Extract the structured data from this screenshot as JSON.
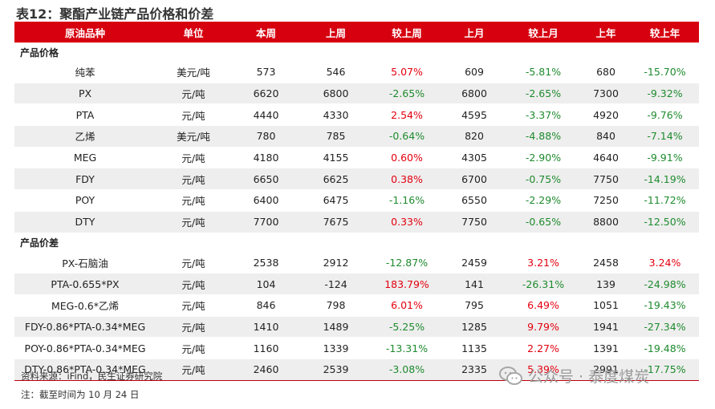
{
  "title": "表12：聚酯产业链产品价格和价差",
  "headers": [
    "原油品种",
    "单位",
    "本周",
    "上周",
    "较上周",
    "上月",
    "较上月",
    "上年",
    "较上年"
  ],
  "sections": [
    {
      "name": "产品价格",
      "rows": [
        [
          "纯苯",
          "美元/吨",
          "573",
          "546",
          "5.07%",
          "609",
          "-5.81%",
          "680",
          "-15.70%"
        ],
        [
          "PX",
          "元/吨",
          "6620",
          "6800",
          "-2.65%",
          "6800",
          "-2.65%",
          "7300",
          "-9.32%"
        ],
        [
          "PTA",
          "元/吨",
          "4440",
          "4330",
          "2.54%",
          "4595",
          "-3.37%",
          "4920",
          "-9.76%"
        ],
        [
          "乙烯",
          "美元/吨",
          "780",
          "785",
          "-0.64%",
          "820",
          "-4.88%",
          "840",
          "-7.14%"
        ],
        [
          "MEG",
          "元/吨",
          "4180",
          "4155",
          "0.60%",
          "4305",
          "-2.90%",
          "4640",
          "-9.91%"
        ],
        [
          "FDY",
          "元/吨",
          "6650",
          "6625",
          "0.38%",
          "6700",
          "-0.75%",
          "7750",
          "-14.19%"
        ],
        [
          "POY",
          "元/吨",
          "6400",
          "6475",
          "-1.16%",
          "6550",
          "-2.29%",
          "7250",
          "-11.72%"
        ],
        [
          "DTY",
          "元/吨",
          "7700",
          "7675",
          "0.33%",
          "7750",
          "-0.65%",
          "8800",
          "-12.50%"
        ]
      ]
    },
    {
      "name": "产品价差",
      "rows": [
        [
          "PX-石脑油",
          "元/吨",
          "2538",
          "2912",
          "-12.87%",
          "2459",
          "3.21%",
          "2458",
          "3.24%"
        ],
        [
          "PTA-0.655*PX",
          "元/吨",
          "104",
          "-124",
          "183.79%",
          "141",
          "-26.31%",
          "139",
          "-24.98%"
        ],
        [
          "MEG-0.6*乙烯",
          "元/吨",
          "846",
          "798",
          "6.01%",
          "795",
          "6.49%",
          "1051",
          "-19.43%"
        ],
        [
          "FDY-0.86*PTA-0.34*MEG",
          "元/吨",
          "1410",
          "1489",
          "-5.25%",
          "1285",
          "9.79%",
          "1941",
          "-27.34%"
        ],
        [
          "POY-0.86*PTA-0.34*MEG",
          "元/吨",
          "1160",
          "1339",
          "-13.31%",
          "1135",
          "2.27%",
          "1391",
          "-19.48%"
        ],
        [
          "DTY-0.86*PTA-0.34*MEG",
          "元/吨",
          "2460",
          "2539",
          "-3.08%",
          "2335",
          "5.39%",
          "2991",
          "-17.75%"
        ]
      ]
    }
  ],
  "source": "资料来源：iFind，民生证券研究院",
  "note": "注：截至时间为 10 月 24 日",
  "watermark": "公众号 · 泰度煤炭",
  "colors": {
    "header_bg": "#d6000f",
    "up": "#e3000f",
    "down": "#1e8b2e",
    "row_shade": "#eeeeee"
  }
}
